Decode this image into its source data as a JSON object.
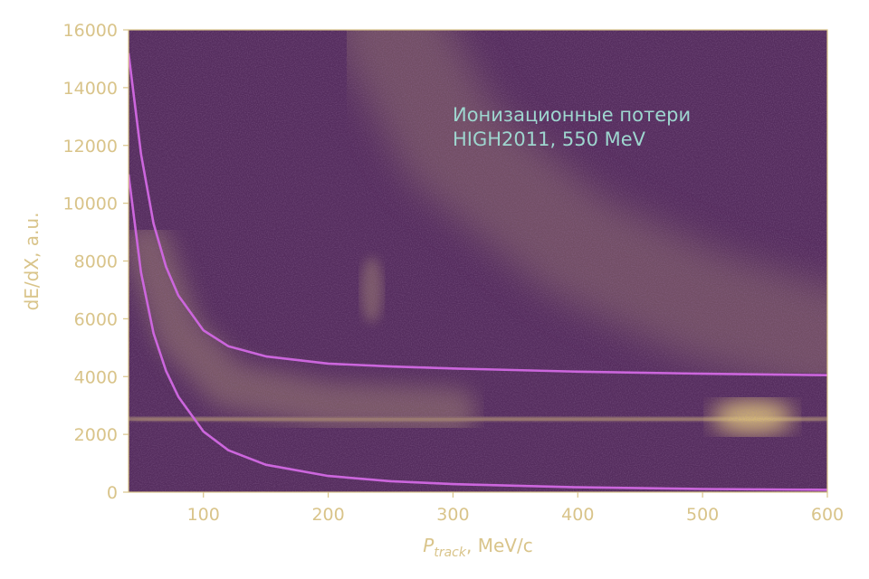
{
  "chart_data": {
    "type": "heatmap",
    "title": "",
    "annotation": {
      "line1": "Ионизационные потери",
      "line2": "HIGH2011, 550 MeV"
    },
    "xlabel_symbol": "P",
    "xlabel_subscript": "track",
    "xlabel_unit": ", MeV/c",
    "ylabel": "dE/dX, a.u.",
    "xlim": [
      40,
      600
    ],
    "ylim": [
      0,
      16000
    ],
    "xticks": [
      100,
      200,
      300,
      400,
      500,
      600
    ],
    "yticks": [
      0,
      2000,
      4000,
      6000,
      8000,
      10000,
      12000,
      14000,
      16000
    ],
    "grid": false,
    "colors": {
      "background": "#552d5e",
      "density_low": "#8a6a6c",
      "density_high": "#e3c87a",
      "curve": "#cc66dd",
      "axis": "#d9c48a"
    },
    "bands": [
      {
        "name": "",
        "description_points": [
          [
            40,
            2500
          ],
          [
            100,
            2500
          ],
          [
            300,
            2500
          ],
          [
            540,
            2600
          ],
          [
            600,
            2600
          ]
        ]
      },
      {
        "name": "",
        "description_points": [
          [
            55,
            8500
          ],
          [
            80,
            5500
          ],
          [
            120,
            3700
          ],
          [
            200,
            3000
          ],
          [
            300,
            2800
          ]
        ]
      },
      {
        "name": "",
        "description_points": [
          [
            250,
            16000
          ],
          [
            300,
            12000
          ],
          [
            400,
            8500
          ],
          [
            500,
            6500
          ],
          [
            600,
            5200
          ]
        ]
      },
      {
        "name": "",
        "description_points": [
          [
            235,
            7000
          ]
        ]
      }
    ],
    "series": [
      {
        "x": [
          40,
          50,
          60,
          70,
          80,
          100,
          120,
          150,
          200,
          250,
          300,
          400,
          500,
          600
        ],
        "values": [
          15200,
          11700,
          9300,
          7800,
          6800,
          5600,
          5050,
          4700,
          4450,
          4350,
          4280,
          4170,
          4100,
          4050
        ]
      },
      {
        "x": [
          40,
          50,
          60,
          70,
          80,
          100,
          120,
          150,
          200,
          250,
          300,
          400,
          500,
          600
        ],
        "values": [
          11000,
          7600,
          5500,
          4200,
          3300,
          2100,
          1450,
          950,
          560,
          380,
          280,
          170,
          110,
          80
        ]
      }
    ]
  }
}
